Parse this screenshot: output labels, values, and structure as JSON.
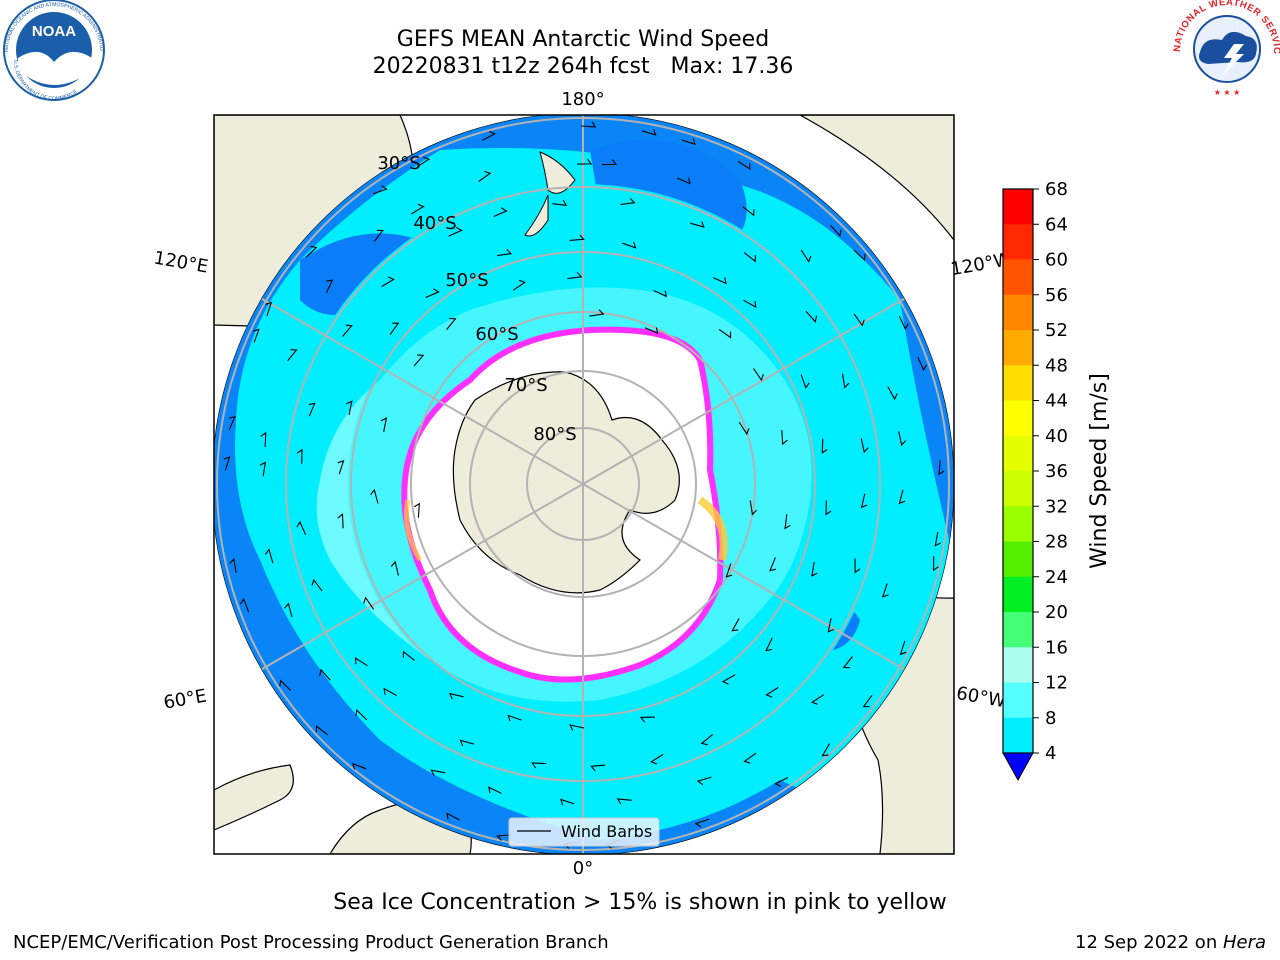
{
  "title": {
    "line1": "GEFS MEAN Antarctic Wind Speed",
    "line2": "20220831 t12z 264h fcst   Max: 17.36"
  },
  "logos": {
    "noaa": {
      "text": "NOAA",
      "ring_text": "NATIONAL OCEANIC AND ATMOSPHERIC ADMINISTRATION",
      "bottom_text": "U.S. DEPARTMENT OF COMMERCE",
      "colors": {
        "sky": "#1b5faa",
        "ring": "#ffffff",
        "gull": "#ffffff"
      }
    },
    "nws": {
      "ring_text": "NATIONAL WEATHER SERVICE",
      "colors": {
        "ring": "#e3232a",
        "cloud": "#1a4fa0"
      }
    }
  },
  "map": {
    "longitude_labels": {
      "top": "180°",
      "bottom": "0°",
      "upper_left": "120°E",
      "upper_right": "120°W",
      "lower_left": "60°E",
      "lower_right": "60°W"
    },
    "latitude_labels": [
      "30°S",
      "40°S",
      "50°S",
      "60°S",
      "70°S",
      "80°S"
    ],
    "legend": {
      "label": "Wind Barbs"
    },
    "colors": {
      "land": "#eeecda",
      "ocean_low": "#0a7ef8",
      "ocean_mid": "#00eeff",
      "ocean_high": "#9afffe",
      "ice_edge": "#ff30ff",
      "ice_yellow": "#ffcc33",
      "grid": "#b3b3b3",
      "ice_interior": "#ffffff"
    }
  },
  "colorbar": {
    "label": "Wind Speed [m/s]",
    "ticks": [
      "68",
      "64",
      "60",
      "56",
      "52",
      "48",
      "44",
      "40",
      "36",
      "32",
      "28",
      "24",
      "20",
      "16",
      "12",
      "8",
      "4"
    ],
    "colors": [
      "#ff0000",
      "#ff2800",
      "#ff5500",
      "#ff8800",
      "#ffaa00",
      "#ffdd00",
      "#ffff00",
      "#e5ff00",
      "#ccff00",
      "#99ff00",
      "#55ee00",
      "#00ee22",
      "#44ff77",
      "#aaffee",
      "#55ffff",
      "#00eeff",
      "#0a7ef8",
      "#1447ff"
    ],
    "extend_color": "#0000ff"
  },
  "caption": "Sea Ice Concentration > 15% is shown in pink to yellow",
  "footer": {
    "left": "NCEP/EMC/Verification Post Processing Product Generation Branch",
    "right_date": "12 Sep 2022 on ",
    "right_host": "Hera"
  }
}
